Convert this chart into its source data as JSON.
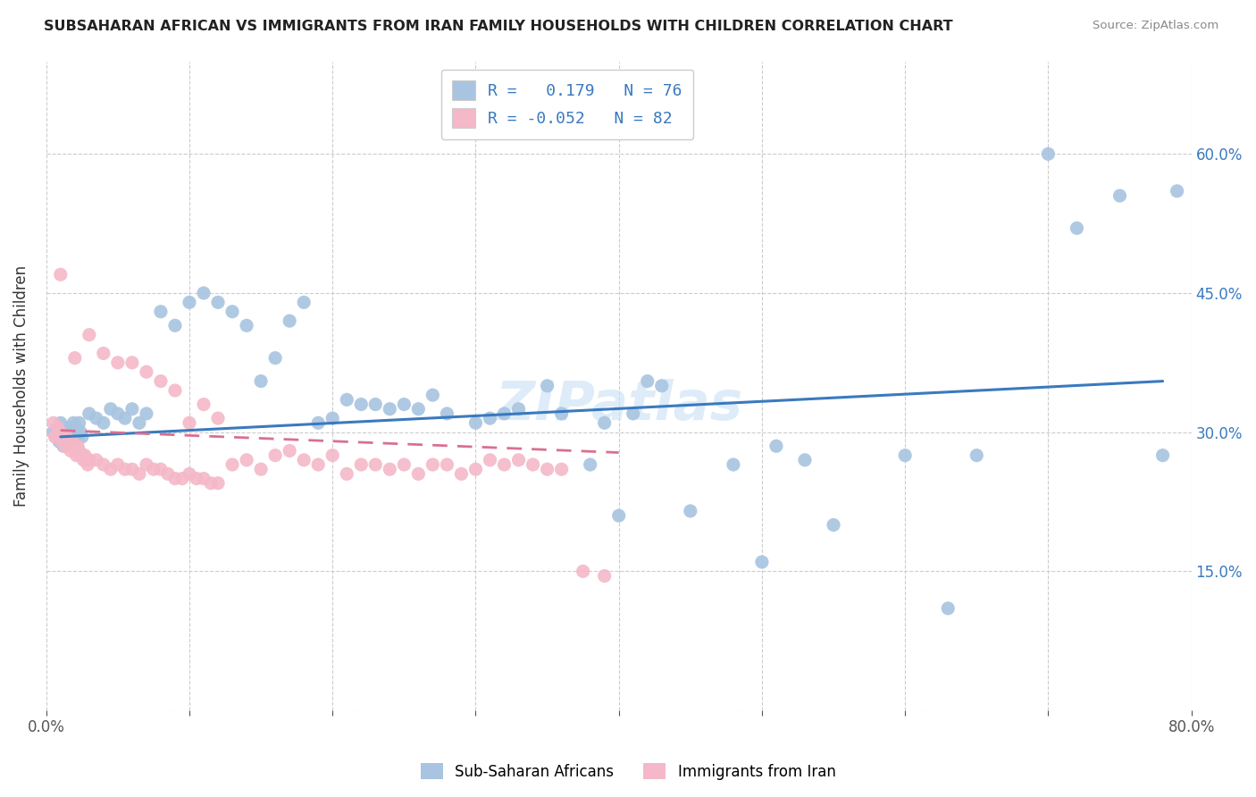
{
  "title": "SUBSAHARAN AFRICAN VS IMMIGRANTS FROM IRAN FAMILY HOUSEHOLDS WITH CHILDREN CORRELATION CHART",
  "source": "Source: ZipAtlas.com",
  "ylabel": "Family Households with Children",
  "xlim": [
    0,
    0.8
  ],
  "ylim": [
    0,
    0.7
  ],
  "ytick_positions": [
    0.0,
    0.15,
    0.3,
    0.45,
    0.6
  ],
  "xtick_positions": [
    0.0,
    0.1,
    0.2,
    0.3,
    0.4,
    0.5,
    0.6,
    0.7,
    0.8
  ],
  "blue_R": 0.179,
  "blue_N": 76,
  "pink_R": -0.052,
  "pink_N": 82,
  "blue_color": "#a8c4e0",
  "pink_color": "#f4b8c8",
  "blue_line_color": "#3a7abf",
  "pink_line_color": "#d97090",
  "watermark": "ZIPatlas",
  "blue_line_x": [
    0.01,
    0.78
  ],
  "blue_line_y": [
    0.295,
    0.355
  ],
  "pink_line_x": [
    0.01,
    0.4
  ],
  "pink_line_y": [
    0.302,
    0.278
  ],
  "blue_points_x": [
    0.005,
    0.007,
    0.008,
    0.009,
    0.01,
    0.011,
    0.012,
    0.013,
    0.014,
    0.015,
    0.016,
    0.017,
    0.018,
    0.019,
    0.02,
    0.021,
    0.022,
    0.023,
    0.024,
    0.025,
    0.03,
    0.035,
    0.04,
    0.045,
    0.05,
    0.055,
    0.06,
    0.065,
    0.07,
    0.08,
    0.09,
    0.1,
    0.11,
    0.12,
    0.13,
    0.14,
    0.15,
    0.16,
    0.17,
    0.18,
    0.19,
    0.2,
    0.21,
    0.22,
    0.23,
    0.24,
    0.25,
    0.26,
    0.27,
    0.28,
    0.3,
    0.31,
    0.32,
    0.33,
    0.35,
    0.36,
    0.38,
    0.39,
    0.4,
    0.41,
    0.42,
    0.43,
    0.45,
    0.48,
    0.5,
    0.51,
    0.53,
    0.55,
    0.6,
    0.63,
    0.65,
    0.7,
    0.72,
    0.75,
    0.78,
    0.79
  ],
  "blue_points_y": [
    0.3,
    0.295,
    0.305,
    0.29,
    0.31,
    0.295,
    0.285,
    0.3,
    0.29,
    0.295,
    0.305,
    0.3,
    0.295,
    0.31,
    0.3,
    0.305,
    0.295,
    0.31,
    0.3,
    0.295,
    0.32,
    0.315,
    0.31,
    0.325,
    0.32,
    0.315,
    0.325,
    0.31,
    0.32,
    0.43,
    0.415,
    0.44,
    0.45,
    0.44,
    0.43,
    0.415,
    0.355,
    0.38,
    0.42,
    0.44,
    0.31,
    0.315,
    0.335,
    0.33,
    0.33,
    0.325,
    0.33,
    0.325,
    0.34,
    0.32,
    0.31,
    0.315,
    0.32,
    0.325,
    0.35,
    0.32,
    0.265,
    0.31,
    0.21,
    0.32,
    0.355,
    0.35,
    0.215,
    0.265,
    0.16,
    0.285,
    0.27,
    0.2,
    0.275,
    0.11,
    0.275,
    0.6,
    0.52,
    0.555,
    0.275,
    0.56
  ],
  "pink_points_x": [
    0.005,
    0.006,
    0.007,
    0.008,
    0.009,
    0.01,
    0.011,
    0.012,
    0.013,
    0.014,
    0.015,
    0.016,
    0.017,
    0.018,
    0.019,
    0.02,
    0.021,
    0.022,
    0.023,
    0.024,
    0.025,
    0.026,
    0.027,
    0.028,
    0.029,
    0.03,
    0.035,
    0.04,
    0.045,
    0.05,
    0.055,
    0.06,
    0.065,
    0.07,
    0.075,
    0.08,
    0.085,
    0.09,
    0.095,
    0.1,
    0.105,
    0.11,
    0.115,
    0.12,
    0.13,
    0.14,
    0.15,
    0.16,
    0.17,
    0.18,
    0.19,
    0.2,
    0.21,
    0.22,
    0.23,
    0.24,
    0.25,
    0.26,
    0.27,
    0.28,
    0.29,
    0.3,
    0.31,
    0.32,
    0.33,
    0.34,
    0.35,
    0.36,
    0.375,
    0.39,
    0.01,
    0.02,
    0.03,
    0.04,
    0.05,
    0.06,
    0.07,
    0.08,
    0.09,
    0.1,
    0.11,
    0.12
  ],
  "pink_points_y": [
    0.31,
    0.295,
    0.295,
    0.305,
    0.295,
    0.3,
    0.29,
    0.295,
    0.285,
    0.295,
    0.285,
    0.29,
    0.28,
    0.29,
    0.285,
    0.285,
    0.275,
    0.285,
    0.28,
    0.275,
    0.275,
    0.27,
    0.275,
    0.27,
    0.265,
    0.27,
    0.27,
    0.265,
    0.26,
    0.265,
    0.26,
    0.26,
    0.255,
    0.265,
    0.26,
    0.26,
    0.255,
    0.25,
    0.25,
    0.255,
    0.25,
    0.25,
    0.245,
    0.245,
    0.265,
    0.27,
    0.26,
    0.275,
    0.28,
    0.27,
    0.265,
    0.275,
    0.255,
    0.265,
    0.265,
    0.26,
    0.265,
    0.255,
    0.265,
    0.265,
    0.255,
    0.26,
    0.27,
    0.265,
    0.27,
    0.265,
    0.26,
    0.26,
    0.15,
    0.145,
    0.47,
    0.38,
    0.405,
    0.385,
    0.375,
    0.375,
    0.365,
    0.355,
    0.345,
    0.31,
    0.33,
    0.315
  ]
}
